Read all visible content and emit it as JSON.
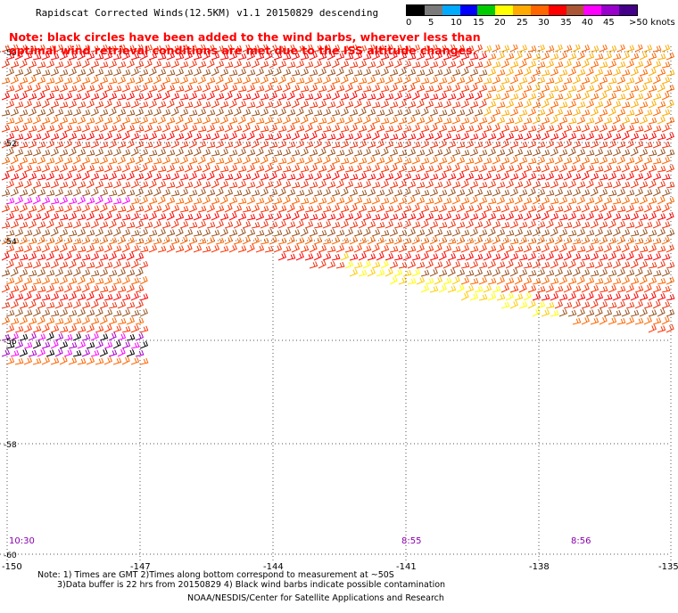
{
  "title": "Rapidscat Corrected Winds(12.5KM) v1.1 20150829 descending",
  "note": "Note: black circles have been added to the wind barbs, wherever less than optimal wind retrieval conditions are met due to the ISS altitude changes.",
  "colorbar": {
    "colors": [
      "#000000",
      "#7a7a7a",
      "#00aaff",
      "#0000ff",
      "#00cc00",
      "#ffff00",
      "#ffaa00",
      "#ff6600",
      "#ff0000",
      "#aa5533",
      "#ff00ff",
      "#9900cc",
      "#440088"
    ],
    "labels": [
      "0",
      "5",
      "10",
      "15",
      "20",
      "25",
      "30",
      "35",
      "40",
      "45",
      ">50 knots"
    ]
  },
  "map": {
    "lon_labels": [
      "-150",
      "-147",
      "-144",
      "-141",
      "-138",
      "-135"
    ],
    "lat_labels": [
      "-50",
      "-52",
      "-54",
      "-56",
      "-58",
      "-60"
    ],
    "time_labels": [
      {
        "text": "10:30",
        "lon": "-150"
      },
      {
        "text": "8:55",
        "lon": "-141"
      },
      {
        "text": "8:56",
        "lon": "-138"
      }
    ]
  },
  "footer": {
    "line1": "Note: 1) Times are GMT 2)Times along bottom correspond to measurement at ~50S",
    "line2": "3)Data buffer is 22 hrs from 20150829 4) Black wind barbs indicate possible contamination",
    "line3": "NOAA/NESDIS/Center for Satellite Applications and Research"
  }
}
